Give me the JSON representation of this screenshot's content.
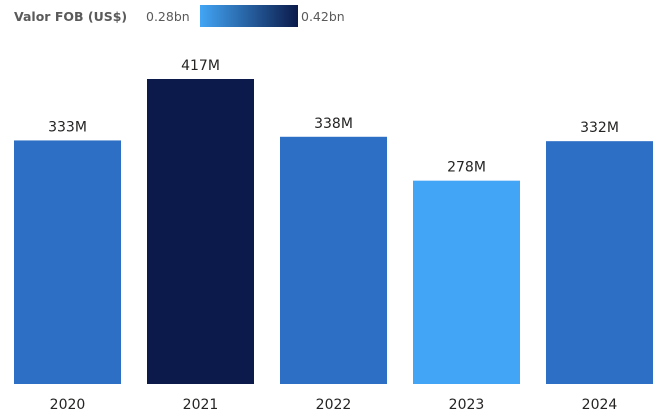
{
  "legend": {
    "title": "Valor FOB (US$)",
    "min_label": "0.28bn",
    "max_label": "0.42bn",
    "color_min": "#42a5f5",
    "color_max": "#0b1a4a"
  },
  "chart_data": {
    "type": "bar",
    "categories": [
      "2020",
      "2021",
      "2022",
      "2023",
      "2024"
    ],
    "values": [
      333,
      417,
      338,
      278,
      332
    ],
    "value_labels": [
      "333M",
      "417M",
      "338M",
      "278M",
      "332M"
    ],
    "unit": "M",
    "colors": [
      "#2c6fc4",
      "#0b1a4a",
      "#2c6fc4",
      "#42a5f5",
      "#2c6fc4"
    ],
    "color_scale": {
      "min": 280,
      "max": 420
    },
    "ylim": [
      0,
      417
    ],
    "grid": false,
    "xlabel": "",
    "ylabel": ""
  }
}
